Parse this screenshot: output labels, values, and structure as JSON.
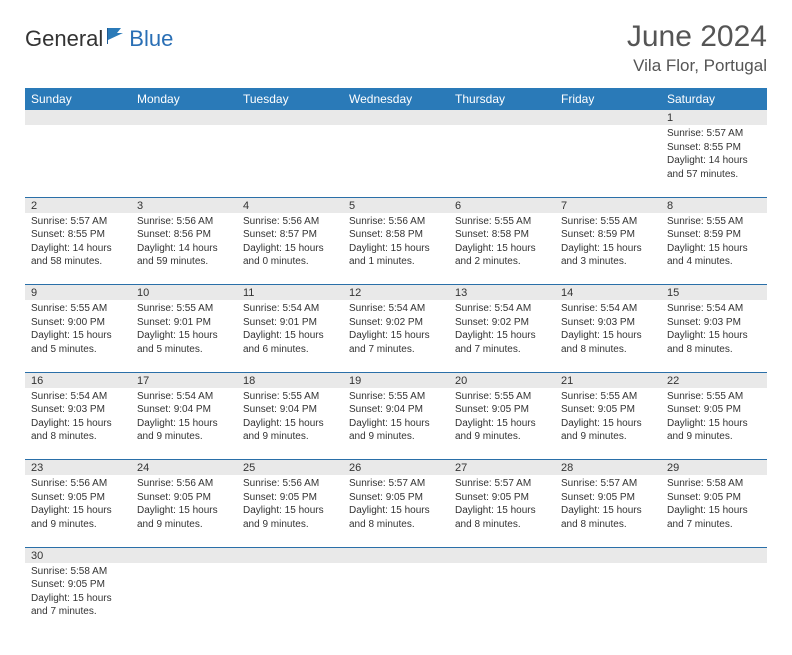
{
  "brand": {
    "part1": "General",
    "part2": "Blue"
  },
  "title": "June 2024",
  "location": "Vila Flor, Portugal",
  "colors": {
    "header_bg": "#2a7ab8",
    "header_text": "#ffffff",
    "daynum_bg": "#e9e9e9",
    "row_divider": "#2a6fa8",
    "text": "#333333",
    "brand_blue": "#2a6fb5"
  },
  "typography": {
    "title_fontsize": 30,
    "location_fontsize": 17,
    "weekday_fontsize": 12,
    "daynum_fontsize": 11,
    "body_fontsize": 10
  },
  "layout": {
    "columns": 7,
    "weeks": 6,
    "start_weekday": "Sunday"
  },
  "weekdays": [
    "Sunday",
    "Monday",
    "Tuesday",
    "Wednesday",
    "Thursday",
    "Friday",
    "Saturday"
  ],
  "days": [
    null,
    null,
    null,
    null,
    null,
    null,
    {
      "n": "1",
      "sunrise": "5:57 AM",
      "sunset": "8:55 PM",
      "day_h": "14",
      "day_m": "57"
    },
    {
      "n": "2",
      "sunrise": "5:57 AM",
      "sunset": "8:55 PM",
      "day_h": "14",
      "day_m": "58"
    },
    {
      "n": "3",
      "sunrise": "5:56 AM",
      "sunset": "8:56 PM",
      "day_h": "14",
      "day_m": "59"
    },
    {
      "n": "4",
      "sunrise": "5:56 AM",
      "sunset": "8:57 PM",
      "day_h": "15",
      "day_m": "0"
    },
    {
      "n": "5",
      "sunrise": "5:56 AM",
      "sunset": "8:58 PM",
      "day_h": "15",
      "day_m": "1"
    },
    {
      "n": "6",
      "sunrise": "5:55 AM",
      "sunset": "8:58 PM",
      "day_h": "15",
      "day_m": "2"
    },
    {
      "n": "7",
      "sunrise": "5:55 AM",
      "sunset": "8:59 PM",
      "day_h": "15",
      "day_m": "3"
    },
    {
      "n": "8",
      "sunrise": "5:55 AM",
      "sunset": "8:59 PM",
      "day_h": "15",
      "day_m": "4"
    },
    {
      "n": "9",
      "sunrise": "5:55 AM",
      "sunset": "9:00 PM",
      "day_h": "15",
      "day_m": "5"
    },
    {
      "n": "10",
      "sunrise": "5:55 AM",
      "sunset": "9:01 PM",
      "day_h": "15",
      "day_m": "5"
    },
    {
      "n": "11",
      "sunrise": "5:54 AM",
      "sunset": "9:01 PM",
      "day_h": "15",
      "day_m": "6"
    },
    {
      "n": "12",
      "sunrise": "5:54 AM",
      "sunset": "9:02 PM",
      "day_h": "15",
      "day_m": "7"
    },
    {
      "n": "13",
      "sunrise": "5:54 AM",
      "sunset": "9:02 PM",
      "day_h": "15",
      "day_m": "7"
    },
    {
      "n": "14",
      "sunrise": "5:54 AM",
      "sunset": "9:03 PM",
      "day_h": "15",
      "day_m": "8"
    },
    {
      "n": "15",
      "sunrise": "5:54 AM",
      "sunset": "9:03 PM",
      "day_h": "15",
      "day_m": "8"
    },
    {
      "n": "16",
      "sunrise": "5:54 AM",
      "sunset": "9:03 PM",
      "day_h": "15",
      "day_m": "8"
    },
    {
      "n": "17",
      "sunrise": "5:54 AM",
      "sunset": "9:04 PM",
      "day_h": "15",
      "day_m": "9"
    },
    {
      "n": "18",
      "sunrise": "5:55 AM",
      "sunset": "9:04 PM",
      "day_h": "15",
      "day_m": "9"
    },
    {
      "n": "19",
      "sunrise": "5:55 AM",
      "sunset": "9:04 PM",
      "day_h": "15",
      "day_m": "9"
    },
    {
      "n": "20",
      "sunrise": "5:55 AM",
      "sunset": "9:05 PM",
      "day_h": "15",
      "day_m": "9"
    },
    {
      "n": "21",
      "sunrise": "5:55 AM",
      "sunset": "9:05 PM",
      "day_h": "15",
      "day_m": "9"
    },
    {
      "n": "22",
      "sunrise": "5:55 AM",
      "sunset": "9:05 PM",
      "day_h": "15",
      "day_m": "9"
    },
    {
      "n": "23",
      "sunrise": "5:56 AM",
      "sunset": "9:05 PM",
      "day_h": "15",
      "day_m": "9"
    },
    {
      "n": "24",
      "sunrise": "5:56 AM",
      "sunset": "9:05 PM",
      "day_h": "15",
      "day_m": "9"
    },
    {
      "n": "25",
      "sunrise": "5:56 AM",
      "sunset": "9:05 PM",
      "day_h": "15",
      "day_m": "9"
    },
    {
      "n": "26",
      "sunrise": "5:57 AM",
      "sunset": "9:05 PM",
      "day_h": "15",
      "day_m": "8"
    },
    {
      "n": "27",
      "sunrise": "5:57 AM",
      "sunset": "9:05 PM",
      "day_h": "15",
      "day_m": "8"
    },
    {
      "n": "28",
      "sunrise": "5:57 AM",
      "sunset": "9:05 PM",
      "day_h": "15",
      "day_m": "8"
    },
    {
      "n": "29",
      "sunrise": "5:58 AM",
      "sunset": "9:05 PM",
      "day_h": "15",
      "day_m": "7"
    },
    {
      "n": "30",
      "sunrise": "5:58 AM",
      "sunset": "9:05 PM",
      "day_h": "15",
      "day_m": "7"
    },
    null,
    null,
    null,
    null,
    null,
    null
  ],
  "labels": {
    "sunrise": "Sunrise:",
    "sunset": "Sunset:",
    "daylight": "Daylight:",
    "hours": "hours",
    "and": "and",
    "minutes": "minutes."
  }
}
